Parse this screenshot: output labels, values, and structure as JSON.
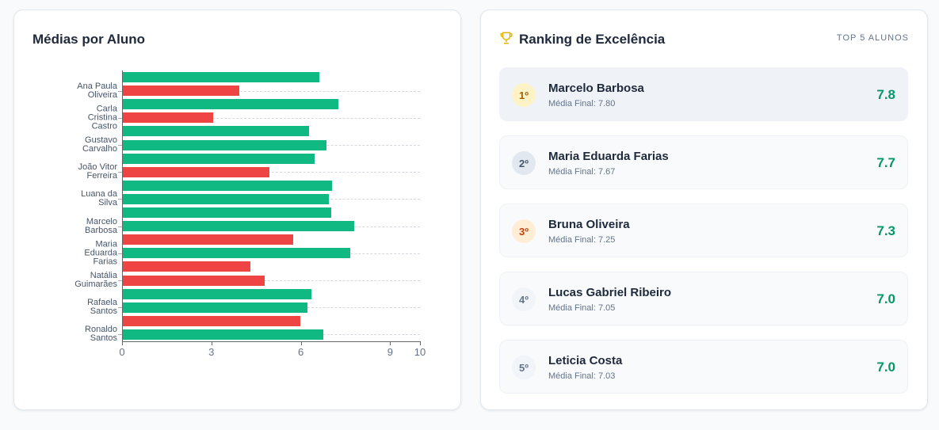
{
  "chart_data": {
    "type": "bar",
    "orientation": "horizontal",
    "title": "Médias por Aluno",
    "categories": [
      null,
      "Ana Paula Oliveira",
      null,
      "Carla Cristina Castro",
      null,
      "Gustavo Carvalho",
      null,
      "João Vitor Ferreira",
      null,
      "Luana da Silva",
      null,
      "Marcelo Barbosa",
      null,
      "Maria Eduarda Farias",
      null,
      "Natália Guimarães",
      null,
      "Rafaela Santos",
      null,
      "Ronaldo Santos"
    ],
    "values": [
      6.62,
      3.94,
      7.25,
      3.06,
      6.28,
      6.86,
      6.46,
      4.95,
      7.05,
      6.94,
      7.03,
      7.8,
      5.74,
      7.67,
      4.31,
      4.79,
      6.36,
      6.22,
      5.98,
      6.76
    ],
    "colors": [
      "#10b981",
      "#ef4444",
      "#10b981",
      "#ef4444",
      "#10b981",
      "#10b981",
      "#10b981",
      "#ef4444",
      "#10b981",
      "#10b981",
      "#10b981",
      "#10b981",
      "#ef4444",
      "#10b981",
      "#ef4444",
      "#ef4444",
      "#10b981",
      "#10b981",
      "#ef4444",
      "#10b981"
    ],
    "xlim": [
      0,
      10
    ],
    "xticks": [
      0,
      3,
      6,
      9,
      10
    ],
    "grid": true
  },
  "ranking": {
    "title": "Ranking de Excelência",
    "subtitle": "TOP 5 ALUNOS",
    "items": [
      {
        "rank": "1º",
        "name": "Marcelo Barbosa",
        "detail": "Média Final: 7.80",
        "score": "7.8"
      },
      {
        "rank": "2º",
        "name": "Maria Eduarda Farias",
        "detail": "Média Final: 7.67",
        "score": "7.7"
      },
      {
        "rank": "3º",
        "name": "Bruna Oliveira",
        "detail": "Média Final: 7.25",
        "score": "7.3"
      },
      {
        "rank": "4º",
        "name": "Lucas Gabriel Ribeiro",
        "detail": "Média Final: 7.05",
        "score": "7.0"
      },
      {
        "rank": "5º",
        "name": "Leticia Costa",
        "detail": "Média Final: 7.03",
        "score": "7.0"
      }
    ]
  }
}
